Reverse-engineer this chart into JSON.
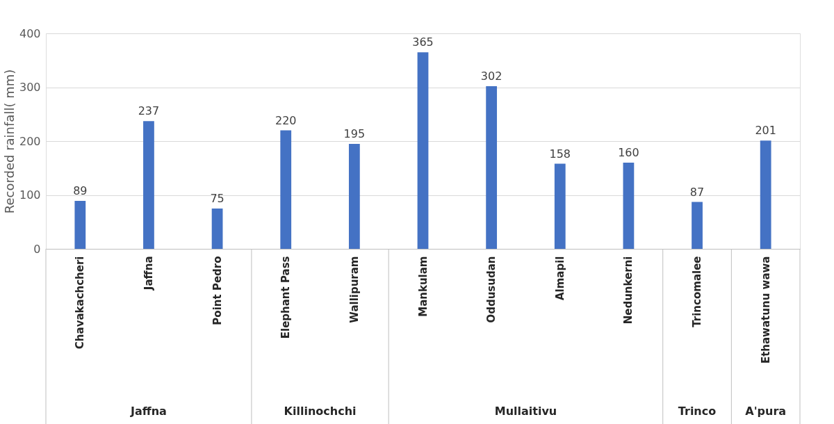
{
  "chart_data": {
    "type": "bar",
    "ylabel": "Recorded rainfall( mm)",
    "categories": [
      "Chavakachcheri",
      "Jaffna",
      "Point Pedro",
      "Elephant Pass",
      "Wallipuram",
      "Mankulam",
      "Oddusudan",
      "Almapil",
      "Nedunkerni",
      "Trincomalee",
      "Ethawatunu wawa"
    ],
    "values": [
      89,
      237,
      75,
      220,
      195,
      365,
      302,
      158,
      160,
      87,
      201
    ],
    "color": "#4472c4",
    "ylim": [
      0,
      400
    ],
    "yticks": [
      0,
      100,
      200,
      300,
      400
    ],
    "grid": "y",
    "data_labels": true,
    "annotations": [
      "Jaffna",
      "Killinochchi",
      "Mullaitivu",
      "Trinco",
      "A'pura"
    ]
  }
}
